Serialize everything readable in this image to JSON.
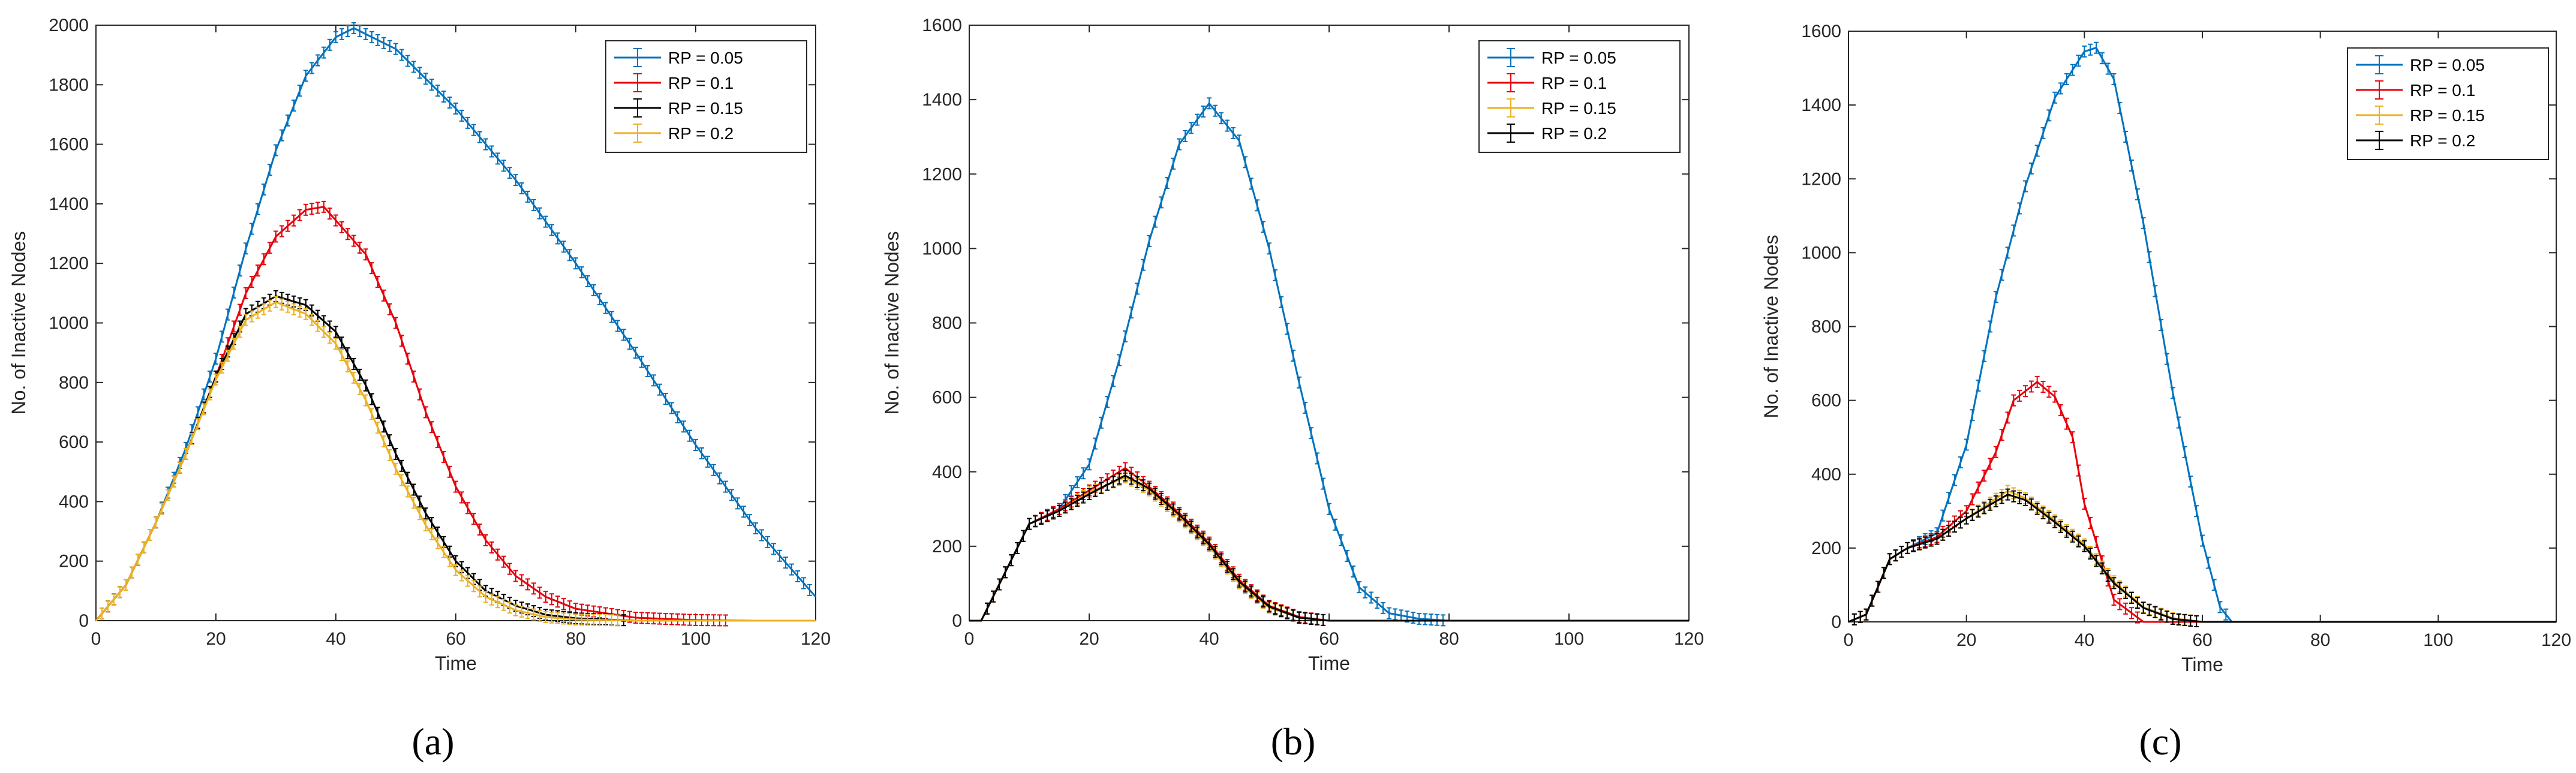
{
  "figure": {
    "panel_labels": [
      "(a)",
      "(b)",
      "(c)"
    ]
  },
  "chart_data": [
    {
      "type": "line",
      "panel": "(a)",
      "title": "",
      "xlabel": "Time",
      "ylabel": "No. of Inactive Nodes",
      "xlim": [
        0,
        120
      ],
      "ylim": [
        0,
        2000
      ],
      "xticks": [
        0,
        20,
        40,
        60,
        80,
        100,
        120
      ],
      "yticks": [
        0,
        200,
        400,
        600,
        800,
        1000,
        1200,
        1400,
        1600,
        1800,
        2000
      ],
      "grid": false,
      "error_bars": true,
      "legend_position": "top-right",
      "series": [
        {
          "name": "RP = 0.05",
          "color": "#0072BD",
          "x": [
            0,
            5,
            10,
            15,
            20,
            25,
            30,
            35,
            40,
            43,
            50,
            60,
            70,
            80,
            90,
            100,
            110,
            120
          ],
          "y": [
            0,
            120,
            330,
            580,
            880,
            1250,
            1580,
            1830,
            1960,
            1990,
            1920,
            1720,
            1480,
            1200,
            900,
            590,
            310,
            80
          ]
        },
        {
          "name": "RP = 0.1",
          "color": "#E8000B",
          "x": [
            0,
            5,
            10,
            15,
            20,
            25,
            30,
            35,
            38,
            45,
            50,
            55,
            60,
            65,
            70,
            75,
            80,
            90,
            100,
            110,
            120
          ],
          "y": [
            0,
            120,
            330,
            560,
            820,
            1100,
            1290,
            1380,
            1390,
            1230,
            1000,
            700,
            450,
            270,
            150,
            80,
            40,
            10,
            2,
            0,
            0
          ]
        },
        {
          "name": "RP = 0.15",
          "color": "#000000",
          "x": [
            0,
            5,
            10,
            15,
            20,
            25,
            30,
            35,
            40,
            45,
            50,
            55,
            60,
            65,
            70,
            75,
            80,
            90
          ],
          "y": [
            0,
            120,
            330,
            560,
            820,
            1030,
            1090,
            1060,
            970,
            790,
            560,
            360,
            200,
            100,
            50,
            20,
            8,
            0
          ]
        },
        {
          "name": "RP = 0.2",
          "color": "#EDB120",
          "x": [
            0,
            5,
            10,
            15,
            20,
            25,
            30,
            35,
            40,
            45,
            50,
            55,
            60,
            65,
            70,
            75,
            80,
            90
          ],
          "y": [
            0,
            120,
            330,
            560,
            810,
            1010,
            1070,
            1030,
            930,
            740,
            510,
            320,
            170,
            80,
            35,
            12,
            4,
            0
          ]
        }
      ]
    },
    {
      "type": "line",
      "panel": "(b)",
      "title": "",
      "xlabel": "Time",
      "ylabel": "No. of Inactive Nodes",
      "xlim": [
        0,
        120
      ],
      "ylim": [
        0,
        1600
      ],
      "xticks": [
        0,
        20,
        40,
        60,
        80,
        100,
        120
      ],
      "yticks": [
        0,
        200,
        400,
        600,
        800,
        1000,
        1200,
        1400,
        1600
      ],
      "grid": false,
      "error_bars": true,
      "legend_position": "top-right",
      "series": [
        {
          "name": "RP = 0.05",
          "color": "#0072BD",
          "x": [
            0,
            2,
            6,
            10,
            15,
            20,
            25,
            30,
            35,
            40,
            45,
            50,
            55,
            60,
            65,
            70,
            75,
            80,
            120
          ],
          "y": [
            0,
            0,
            130,
            260,
            300,
            420,
            700,
            1020,
            1280,
            1390,
            1290,
            1000,
            640,
            300,
            90,
            20,
            5,
            0,
            0
          ]
        },
        {
          "name": "RP = 0.1",
          "color": "#E8000B",
          "x": [
            0,
            2,
            6,
            10,
            15,
            20,
            26,
            30,
            35,
            40,
            45,
            50,
            55,
            60,
            120
          ],
          "y": [
            0,
            0,
            130,
            260,
            300,
            350,
            410,
            360,
            290,
            210,
            110,
            40,
            10,
            0,
            0
          ]
        },
        {
          "name": "RP = 0.15",
          "color": "#EDB120",
          "x": [
            0,
            2,
            6,
            10,
            15,
            20,
            26,
            30,
            35,
            40,
            45,
            50,
            55,
            60,
            120
          ],
          "y": [
            0,
            0,
            130,
            260,
            295,
            345,
            385,
            350,
            280,
            200,
            100,
            35,
            8,
            0,
            0
          ]
        },
        {
          "name": "RP = 0.2",
          "color": "#000000",
          "x": [
            0,
            2,
            6,
            10,
            15,
            20,
            26,
            30,
            35,
            40,
            45,
            50,
            55,
            60,
            120
          ],
          "y": [
            0,
            0,
            130,
            260,
            295,
            340,
            390,
            355,
            285,
            205,
            105,
            38,
            8,
            0,
            0
          ]
        }
      ]
    },
    {
      "type": "line",
      "panel": "(c)",
      "title": "",
      "xlabel": "Time",
      "ylabel": "No. of Inactive Nodes",
      "xlim": [
        0,
        120
      ],
      "ylim": [
        0,
        1600
      ],
      "xticks": [
        0,
        20,
        40,
        60,
        80,
        100,
        120
      ],
      "yticks": [
        0,
        200,
        400,
        600,
        800,
        1000,
        1200,
        1400,
        1600
      ],
      "grid": false,
      "error_bars": true,
      "legend_position": "top-right",
      "series": [
        {
          "name": "RP = 0.05",
          "color": "#0072BD",
          "x": [
            0,
            3,
            7,
            10,
            15,
            20,
            25,
            30,
            35,
            40,
            42,
            45,
            50,
            55,
            60,
            63,
            65,
            120
          ],
          "y": [
            0,
            20,
            170,
            200,
            240,
            480,
            880,
            1180,
            1420,
            1545,
            1555,
            1470,
            1080,
            620,
            220,
            40,
            0,
            0
          ]
        },
        {
          "name": "RP = 0.1",
          "color": "#E8000B",
          "x": [
            0,
            3,
            7,
            10,
            15,
            20,
            25,
            28,
            32,
            35,
            38,
            40,
            45,
            50,
            120
          ],
          "y": [
            0,
            20,
            170,
            200,
            230,
            300,
            460,
            600,
            650,
            610,
            500,
            320,
            60,
            0,
            0
          ]
        },
        {
          "name": "RP = 0.15",
          "color": "#EDB120",
          "x": [
            0,
            3,
            7,
            10,
            15,
            20,
            27,
            30,
            35,
            40,
            45,
            50,
            55,
            60,
            120
          ],
          "y": [
            0,
            20,
            170,
            200,
            225,
            280,
            355,
            335,
            275,
            210,
            110,
            40,
            10,
            0,
            0
          ]
        },
        {
          "name": "RP = 0.2",
          "color": "#000000",
          "x": [
            0,
            3,
            7,
            10,
            15,
            20,
            27,
            30,
            35,
            40,
            45,
            50,
            55,
            60,
            120
          ],
          "y": [
            0,
            20,
            170,
            200,
            225,
            280,
            345,
            330,
            270,
            205,
            105,
            38,
            8,
            0,
            0
          ]
        }
      ]
    }
  ]
}
